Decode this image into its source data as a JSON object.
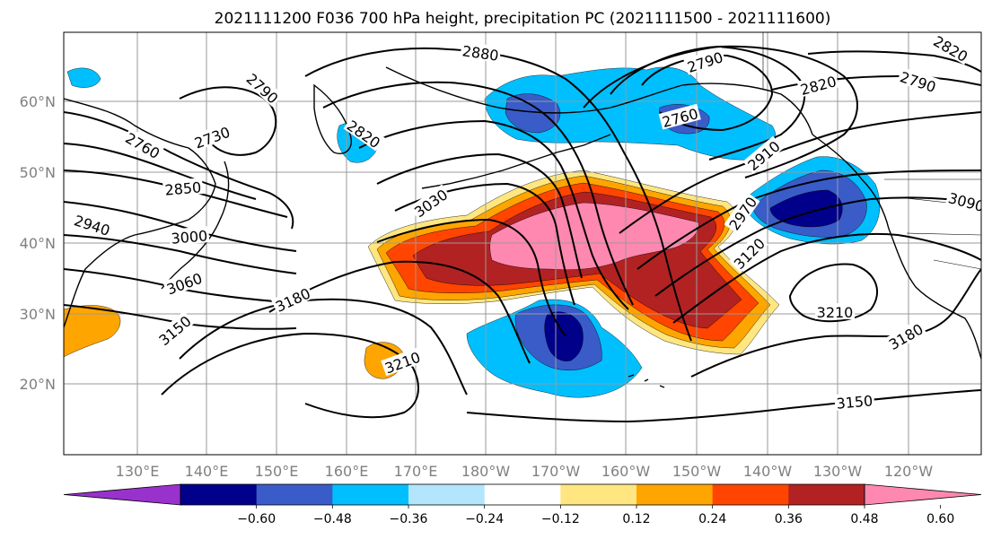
{
  "title": "2021111200 F036 700 hPa height, precipitation PC (2021111500 - 2021111600)",
  "lon_labels": [
    "130°E",
    "140°E",
    "150°E",
    "160°E",
    "170°E",
    "180°W",
    "170°W",
    "160°W",
    "150°W",
    "140°W",
    "130°W",
    "120°W"
  ],
  "lat_labels": [
    "20°N",
    "30°N",
    "40°N",
    "50°N",
    "60°N"
  ],
  "colorbar": {
    "ticks": [
      "−0.60",
      "−0.48",
      "−0.36",
      "−0.24",
      "−0.12",
      "0.12",
      "0.24",
      "0.36",
      "0.48",
      "0.60"
    ],
    "colors": [
      "#9932cc",
      "#00008b",
      "#3a5cc8",
      "#00bfff",
      "#b3e5fc",
      "#ffffff",
      "#ffe680",
      "#ffa500",
      "#ff4500",
      "#b22222",
      "#ff88b0"
    ]
  },
  "shading_colors": {
    "neg_light": "#b3e5fc",
    "neg_1": "#00bfff",
    "neg_2": "#3a5cc8",
    "neg_3": "#00008b",
    "pos_1": "#ffe680",
    "pos_2": "#ffa500",
    "pos_3": "#ff4500",
    "pos_4": "#b22222",
    "pos_5": "#ff88b0"
  },
  "contour_labels": {
    "l2880": "2880",
    "l2790a": "2790",
    "l2790b": "2790",
    "l2790c": "2790",
    "l2820a": "2820",
    "l2820b": "2820",
    "l2820c": "2820",
    "l2760a": "2760",
    "l2760b": "2760",
    "l2730": "2730",
    "l2850": "2850",
    "l2940": "2940",
    "l3000": "3000",
    "l3030": "3030",
    "l3060": "3060",
    "l2910": "2910",
    "l2970": "2970",
    "l3090": "3090",
    "l3120": "3120",
    "l3150a": "3150",
    "l3150b": "3150",
    "l3180a": "3180",
    "l3180b": "3180",
    "l3210a": "3210",
    "l3210b": "3210"
  }
}
